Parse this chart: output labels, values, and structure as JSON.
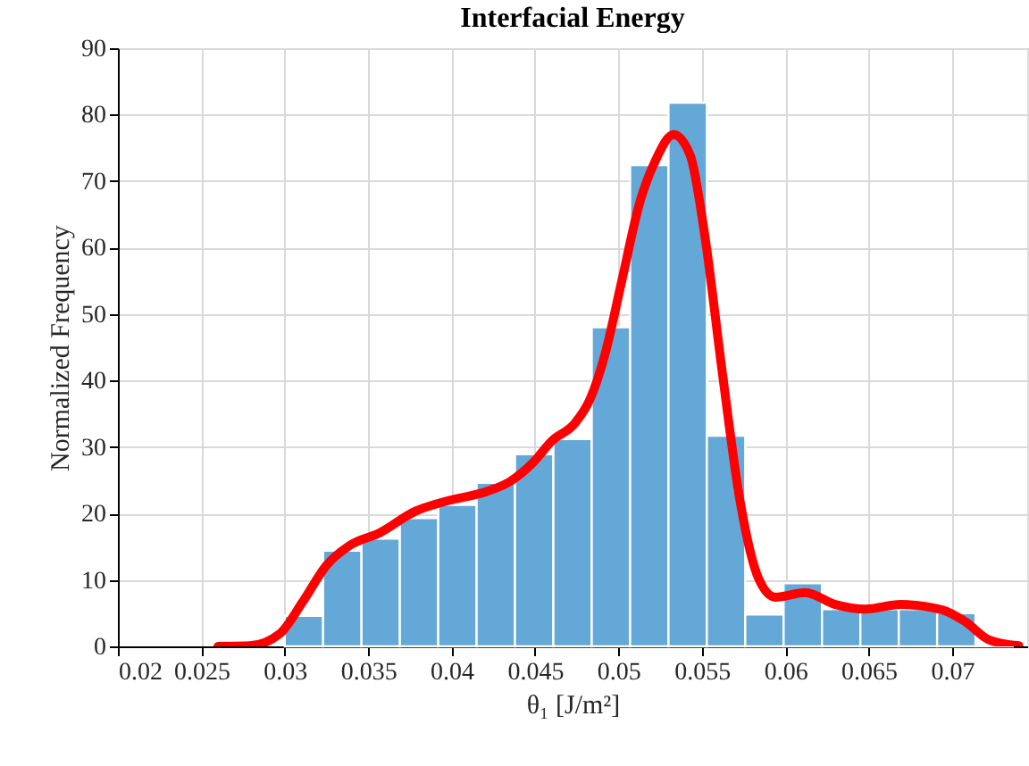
{
  "chart_data": {
    "type": "histogram",
    "title": "Interfacial Energy",
    "xlabel": "θ₁ [J/m²]",
    "ylabel": "Normalized Frequency",
    "bins": [
      0.03,
      0.0323,
      0.0346,
      0.0369,
      0.0392,
      0.0415,
      0.0438,
      0.0461,
      0.0484,
      0.0507,
      0.053,
      0.0553,
      0.0576,
      0.0599,
      0.0622,
      0.0645,
      0.0668,
      0.0691,
      0.0714,
      0.0737
    ],
    "values": [
      4.6,
      14.4,
      16.2,
      19.3,
      21.3,
      24.6,
      28.9,
      31.2,
      48.0,
      72.4,
      81.8,
      31.7,
      4.8,
      9.5,
      5.6,
      5.6,
      5.6,
      5.0,
      null
    ],
    "color": "#64a8d7",
    "series": [
      {
        "type": "line",
        "color": "#ff0000",
        "line_style": "solid",
        "marker": "none",
        "x": [
          0.026,
          0.0279,
          0.0297,
          0.0311,
          0.0325,
          0.0339,
          0.0357,
          0.0378,
          0.0396,
          0.0421,
          0.0435,
          0.0449,
          0.046,
          0.0474,
          0.0483,
          0.0492,
          0.0502,
          0.0513,
          0.0522,
          0.0533,
          0.0543,
          0.0552,
          0.0562,
          0.0573,
          0.0584,
          0.0594,
          0.0612,
          0.063,
          0.0648,
          0.0669,
          0.0694,
          0.0708,
          0.0722,
          0.074
        ],
        "values": [
          0,
          0.1,
          1.9,
          6.8,
          12.2,
          15.2,
          17.1,
          20.3,
          21.8,
          23.3,
          24.8,
          27.7,
          30.9,
          33.6,
          37.2,
          44.0,
          55,
          67,
          73,
          77.0,
          73.9,
          61.4,
          41.7,
          21.7,
          10.2,
          7.4,
          8.1,
          6.3,
          5.6,
          6.3,
          5.5,
          3.7,
          1.0,
          0.1
        ]
      }
    ],
    "xlim": [
      0.02,
      0.0745
    ],
    "xticks": [
      0.02,
      0.025,
      0.03,
      0.035,
      0.04,
      0.045,
      0.05,
      0.055,
      0.06,
      0.065,
      0.07
    ],
    "ylim": [
      0,
      90
    ],
    "yticks": [
      0,
      10,
      20,
      30,
      40,
      50,
      60,
      70,
      80,
      90
    ],
    "grid": true
  }
}
